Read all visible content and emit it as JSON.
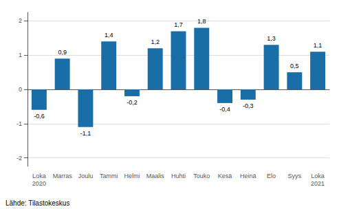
{
  "chart_data": {
    "type": "bar",
    "categories": [
      "Loka\n2020",
      "Marras",
      "Joulu",
      "Tammi",
      "Helmi",
      "Maalis",
      "Huhti",
      "Touko",
      "Kesä",
      "Heinä",
      "Elo",
      "Syys",
      "Loka\n2021"
    ],
    "values": [
      -0.6,
      0.9,
      -1.1,
      1.4,
      -0.2,
      1.2,
      1.7,
      1.8,
      -0.4,
      -0.3,
      1.3,
      0.5,
      1.1
    ],
    "value_labels": [
      "-0,6",
      "0,9",
      "-1,1",
      "1,4",
      "-0,2",
      "1,2",
      "1,7",
      "1,8",
      "-0,4",
      "-0,3",
      "1,3",
      "0,5",
      "1,1"
    ],
    "data_labels": true,
    "color": "#1a6ea8",
    "ylim": [
      -2.25,
      2.25
    ],
    "yticks": [
      -2,
      -1,
      0,
      1,
      2
    ],
    "grid": true,
    "footer": "Lähde: Tilastokeskus"
  }
}
